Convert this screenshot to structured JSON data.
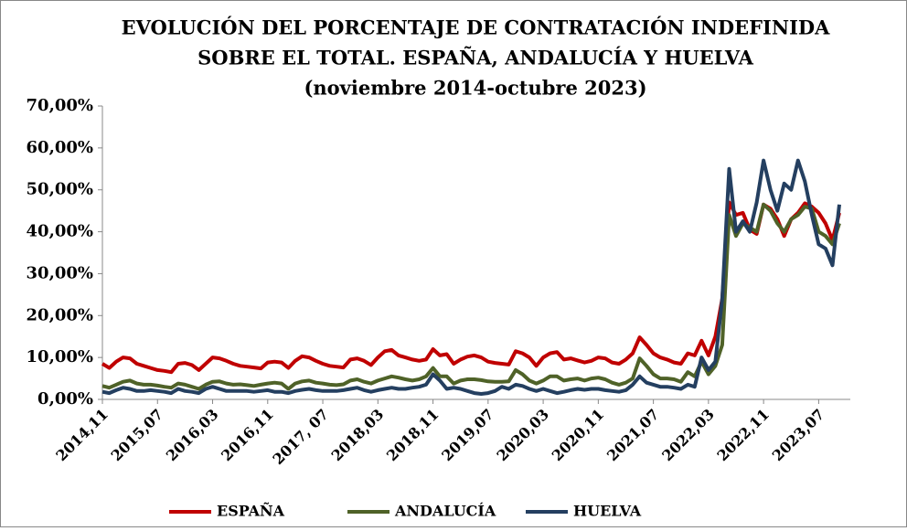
{
  "chart_data": {
    "type": "line",
    "title": [
      "EVOLUCIÓN DEL PORCENTAJE DE CONTRATACIÓN INDEFINIDA",
      "SOBRE EL TOTAL. ESPAÑA, ANDALUCÍA Y HUELVA",
      "(noviembre 2014-octubre 2023)"
    ],
    "categories": [
      "2014,11",
      null,
      null,
      null,
      null,
      null,
      null,
      null,
      "2015,07",
      null,
      null,
      null,
      null,
      null,
      null,
      null,
      "2016,03",
      null,
      null,
      null,
      null,
      null,
      null,
      null,
      "2016,11",
      null,
      null,
      null,
      null,
      null,
      null,
      null,
      "2017, 07",
      null,
      null,
      null,
      null,
      null,
      null,
      null,
      "2018,03",
      null,
      null,
      null,
      null,
      null,
      null,
      null,
      "2018,11",
      null,
      null,
      null,
      null,
      null,
      null,
      null,
      "2019,07",
      null,
      null,
      null,
      null,
      null,
      null,
      null,
      "2020,03",
      null,
      null,
      null,
      null,
      null,
      null,
      null,
      "2020,11",
      null,
      null,
      null,
      null,
      null,
      null,
      null,
      "2021,07",
      null,
      null,
      null,
      null,
      null,
      null,
      null,
      "2022,03",
      null,
      null,
      null,
      null,
      null,
      null,
      null,
      "2022,11",
      null,
      null,
      null,
      null,
      null,
      null,
      null,
      "2023,07",
      null,
      null,
      null
    ],
    "series": [
      {
        "name": "ESPAÑA",
        "color": "#c00000",
        "values": [
          8.5,
          7.5,
          9,
          10,
          9.8,
          8.5,
          8,
          7.5,
          7,
          6.8,
          6.5,
          8.5,
          8.7,
          8.2,
          7,
          8.5,
          10,
          9.8,
          9.2,
          8.5,
          8,
          7.8,
          7.6,
          7.4,
          8.8,
          9,
          8.8,
          7.5,
          9.2,
          10.3,
          10,
          9.2,
          8.5,
          8,
          7.8,
          7.6,
          9.5,
          9.8,
          9.2,
          8.2,
          10,
          11.5,
          11.8,
          10.5,
          10,
          9.5,
          9.2,
          9.5,
          12,
          10.5,
          10.8,
          8.5,
          9.5,
          10.2,
          10.5,
          10,
          9,
          8.7,
          8.5,
          8.3,
          11.5,
          11,
          10,
          8,
          10,
          11,
          11.3,
          9.5,
          9.8,
          9.3,
          8.8,
          9.2,
          10,
          9.8,
          8.8,
          8.5,
          9.5,
          11,
          14.8,
          13,
          11,
          10,
          9.5,
          8.8,
          8.5,
          11,
          10.5,
          14,
          10.5,
          15,
          24,
          47,
          44,
          44.5,
          40.5,
          39.5,
          46.5,
          45.5,
          43,
          39,
          43,
          44.5,
          46.8,
          46,
          44.5,
          42,
          38,
          44.5
        ]
      },
      {
        "name": "ANDALUCÍA",
        "color": "#4f6228",
        "values": [
          3.2,
          2.8,
          3.5,
          4.2,
          4.5,
          3.8,
          3.5,
          3.5,
          3.3,
          3,
          2.8,
          3.8,
          3.5,
          3,
          2.5,
          3.5,
          4.2,
          4.3,
          3.8,
          3.5,
          3.6,
          3.4,
          3.2,
          3.5,
          3.8,
          4,
          3.8,
          2.5,
          3.8,
          4.3,
          4.5,
          4,
          3.8,
          3.5,
          3.4,
          3.6,
          4.5,
          4.8,
          4.2,
          3.8,
          4.5,
          5,
          5.5,
          5.2,
          4.8,
          4.5,
          4.8,
          5.5,
          7.5,
          5.5,
          5.5,
          3.8,
          4.5,
          4.8,
          4.8,
          4.6,
          4.3,
          4.2,
          4.2,
          4.3,
          7,
          6,
          4.5,
          3.8,
          4.5,
          5.5,
          5.5,
          4.5,
          4.8,
          5,
          4.5,
          5,
          5.2,
          4.8,
          4,
          3.5,
          4,
          5,
          9.8,
          8,
          6,
          5,
          5,
          4.8,
          4.2,
          6.5,
          5.5,
          9,
          6,
          8,
          13,
          44,
          39,
          42,
          41,
          40,
          46.5,
          45,
          42,
          40,
          43,
          44,
          46,
          45.5,
          40,
          39,
          37,
          42
        ]
      },
      {
        "name": "HUELVA",
        "color": "#243f60",
        "values": [
          1.8,
          1.5,
          2.2,
          2.8,
          2.5,
          2,
          2,
          2.2,
          2,
          1.8,
          1.5,
          2.5,
          2,
          1.8,
          1.5,
          2.5,
          3,
          2.5,
          2,
          2,
          2,
          2,
          1.8,
          2,
          2.2,
          1.8,
          1.8,
          1.5,
          2,
          2.3,
          2.5,
          2.2,
          2,
          2,
          2,
          2.2,
          2.5,
          2.8,
          2.2,
          1.8,
          2.2,
          2.5,
          2.8,
          2.5,
          2.5,
          2.8,
          3,
          3.5,
          6,
          4.5,
          2.5,
          2.8,
          2.5,
          2,
          1.5,
          1.3,
          1.5,
          2,
          3,
          2.5,
          3.5,
          3.2,
          2.5,
          2,
          2.5,
          2,
          1.5,
          1.8,
          2.2,
          2.5,
          2.3,
          2.5,
          2.5,
          2.2,
          2,
          1.8,
          2.2,
          3.5,
          5.5,
          4,
          3.5,
          3,
          3,
          2.8,
          2.5,
          3.5,
          3,
          10,
          7,
          9,
          24,
          55,
          40,
          42.5,
          40,
          47,
          57,
          50,
          45,
          51.5,
          50,
          57,
          52,
          44,
          37,
          36,
          32,
          46.5
        ]
      }
    ],
    "ylim": [
      0,
      70
    ],
    "yticks": [
      {
        "value": 0,
        "label": "0,00%"
      },
      {
        "value": 10,
        "label": "10,00%"
      },
      {
        "value": 20,
        "label": "20,00%"
      },
      {
        "value": 30,
        "label": "30,00%"
      },
      {
        "value": 40,
        "label": "40,00%"
      },
      {
        "value": 50,
        "label": "50,00%"
      },
      {
        "value": 60,
        "label": "60,00%"
      },
      {
        "value": 70,
        "label": "70,00%"
      }
    ],
    "grid": false,
    "legend": "bottom"
  }
}
